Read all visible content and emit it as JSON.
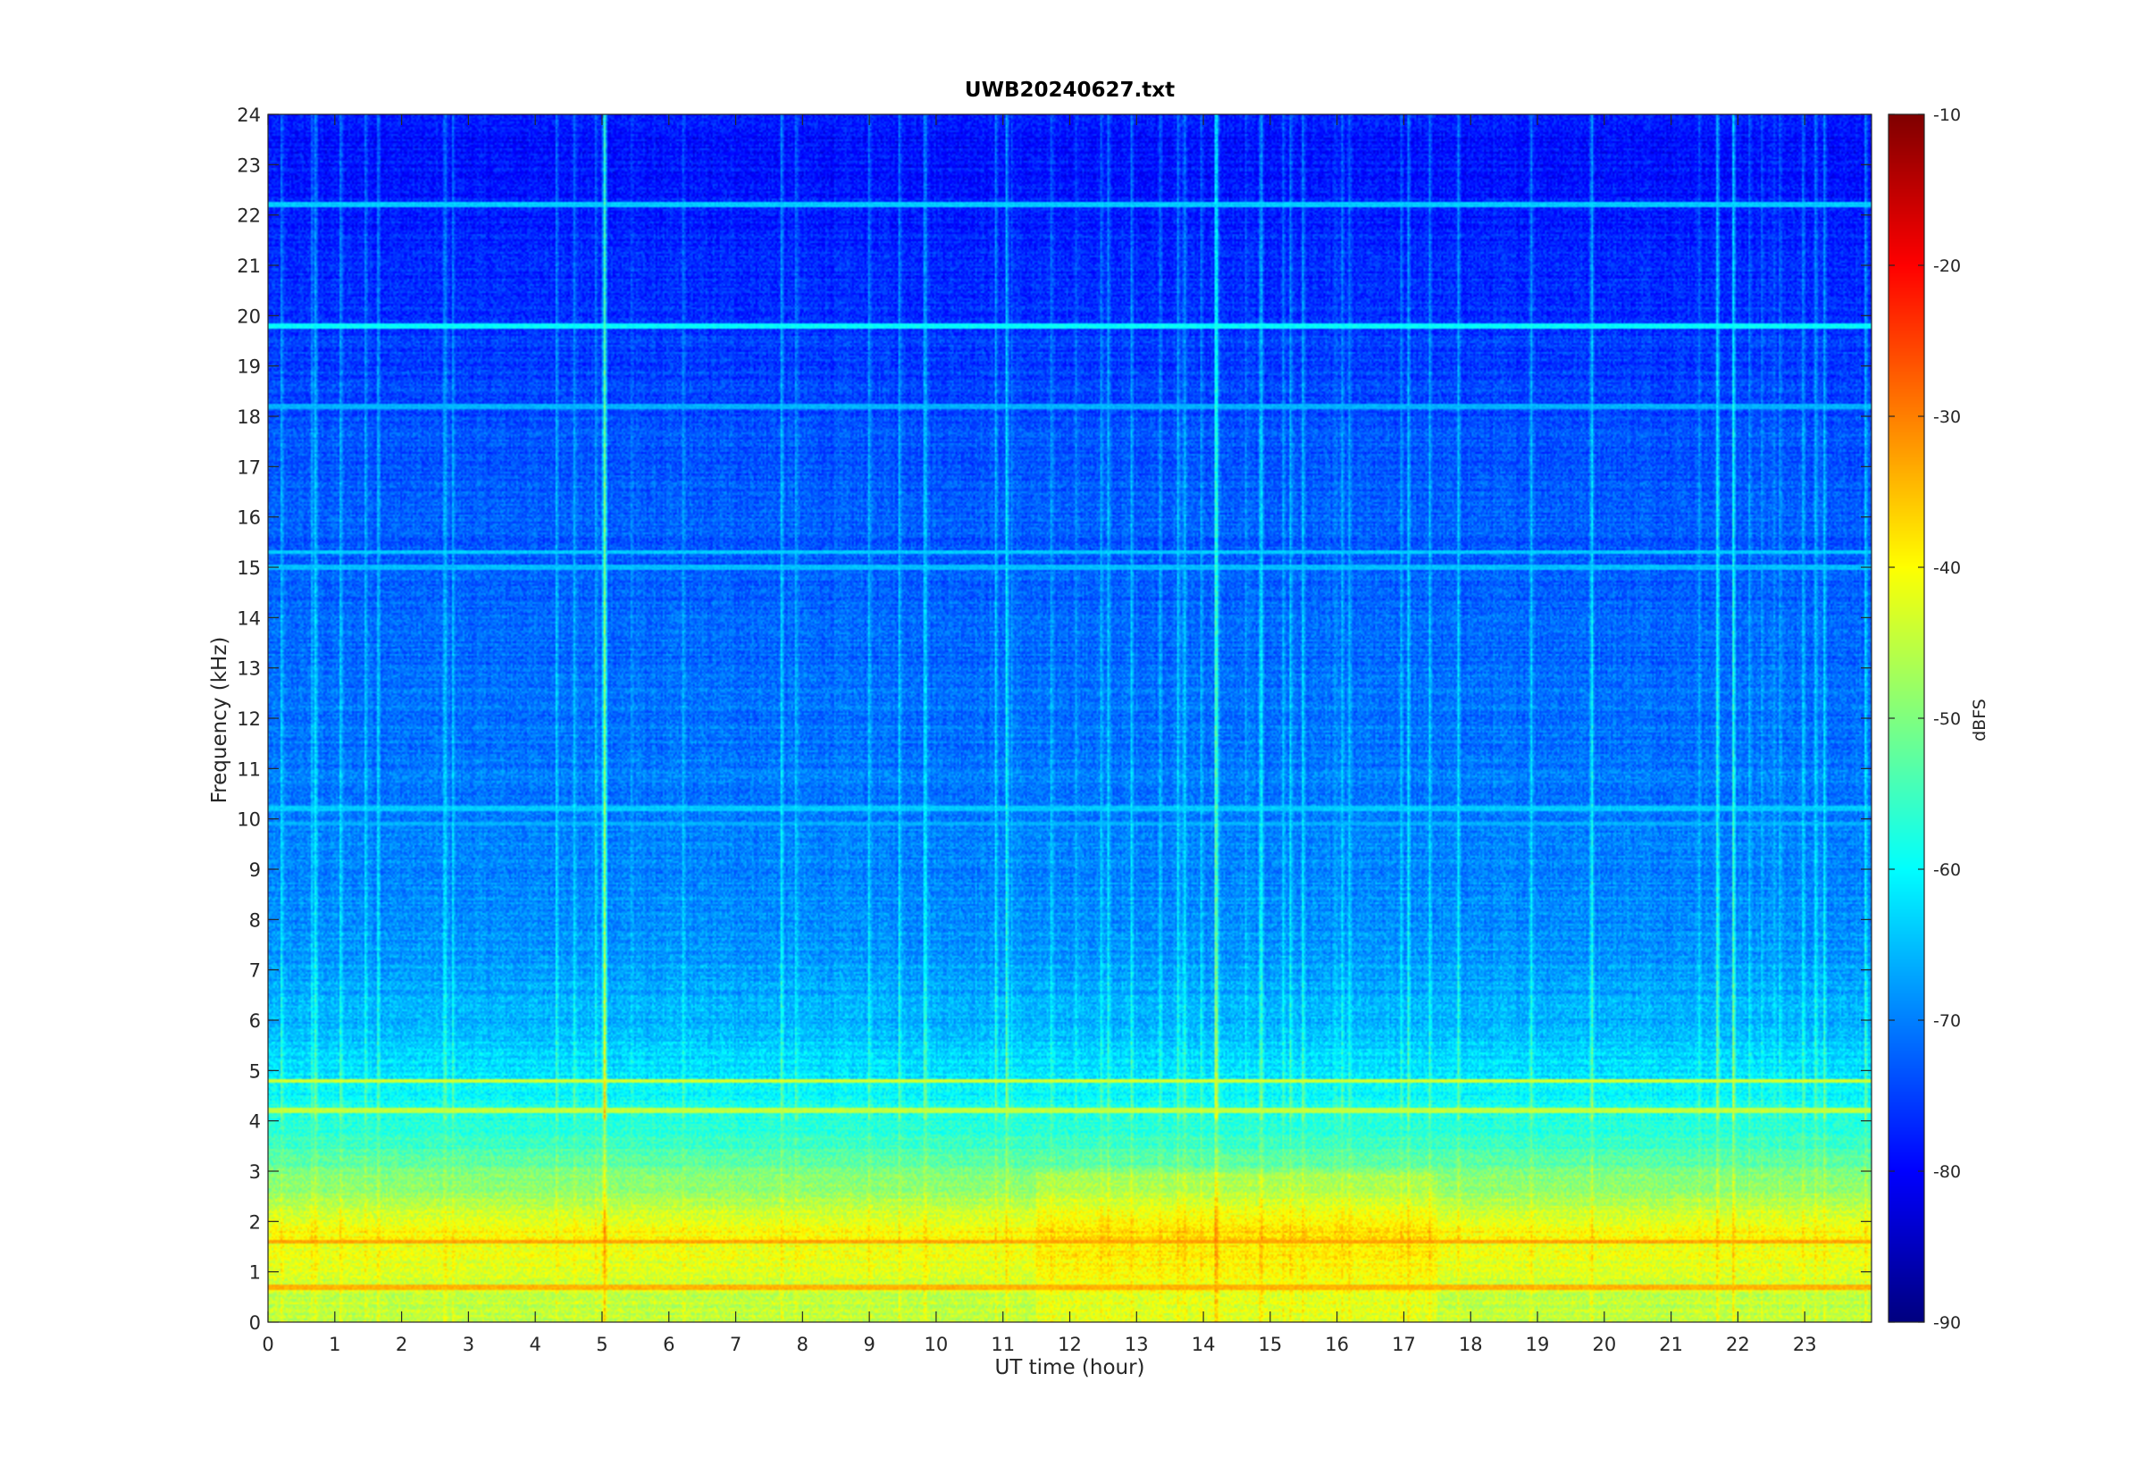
{
  "chart_data": {
    "type": "heatmap",
    "title": "UWB20240627.txt",
    "xlabel": "UT time (hour)",
    "ylabel": "Frequency (kHz)",
    "xlim": [
      0,
      24
    ],
    "ylim": [
      0,
      24
    ],
    "x_ticks": [
      "0",
      "1",
      "2",
      "3",
      "4",
      "5",
      "6",
      "7",
      "8",
      "9",
      "10",
      "11",
      "12",
      "13",
      "14",
      "15",
      "16",
      "17",
      "18",
      "19",
      "20",
      "21",
      "22",
      "23"
    ],
    "y_ticks": [
      "0",
      "1",
      "2",
      "3",
      "4",
      "5",
      "6",
      "7",
      "8",
      "9",
      "10",
      "11",
      "12",
      "13",
      "14",
      "15",
      "16",
      "17",
      "18",
      "19",
      "20",
      "21",
      "22",
      "23",
      "24"
    ],
    "colorbar": {
      "label": "dBFS",
      "range": [
        -90,
        -10
      ],
      "ticks": [
        "-10",
        "-20",
        "-30",
        "-40",
        "-50",
        "-60",
        "-70",
        "-80",
        "-90"
      ],
      "colormap": "jet"
    },
    "value_profile_dbfs": [
      {
        "freq_khz": 0.3,
        "level": -45
      },
      {
        "freq_khz": 1.0,
        "level": -43
      },
      {
        "freq_khz": 1.8,
        "level": -40
      },
      {
        "freq_khz": 2.5,
        "level": -47
      },
      {
        "freq_khz": 3.5,
        "level": -55
      },
      {
        "freq_khz": 4.5,
        "level": -60
      },
      {
        "freq_khz": 6.0,
        "level": -66
      },
      {
        "freq_khz": 8.0,
        "level": -69
      },
      {
        "freq_khz": 10.0,
        "level": -70
      },
      {
        "freq_khz": 14.0,
        "level": -72
      },
      {
        "freq_khz": 18.0,
        "level": -74
      },
      {
        "freq_khz": 21.0,
        "level": -77
      },
      {
        "freq_khz": 23.5,
        "level": -79
      }
    ],
    "narrowband_lines_khz": [
      {
        "freq_khz": 19.8,
        "level": -60
      },
      {
        "freq_khz": 22.2,
        "level": -64
      },
      {
        "freq_khz": 18.2,
        "level": -66
      },
      {
        "freq_khz": 15.3,
        "level": -64
      },
      {
        "freq_khz": 15.0,
        "level": -65
      },
      {
        "freq_khz": 10.2,
        "level": -64
      },
      {
        "freq_khz": 9.9,
        "level": -66
      },
      {
        "freq_khz": 4.8,
        "level": -44
      },
      {
        "freq_khz": 4.2,
        "level": -45
      },
      {
        "freq_khz": 1.6,
        "level": -33
      },
      {
        "freq_khz": 0.7,
        "level": -34
      }
    ]
  }
}
